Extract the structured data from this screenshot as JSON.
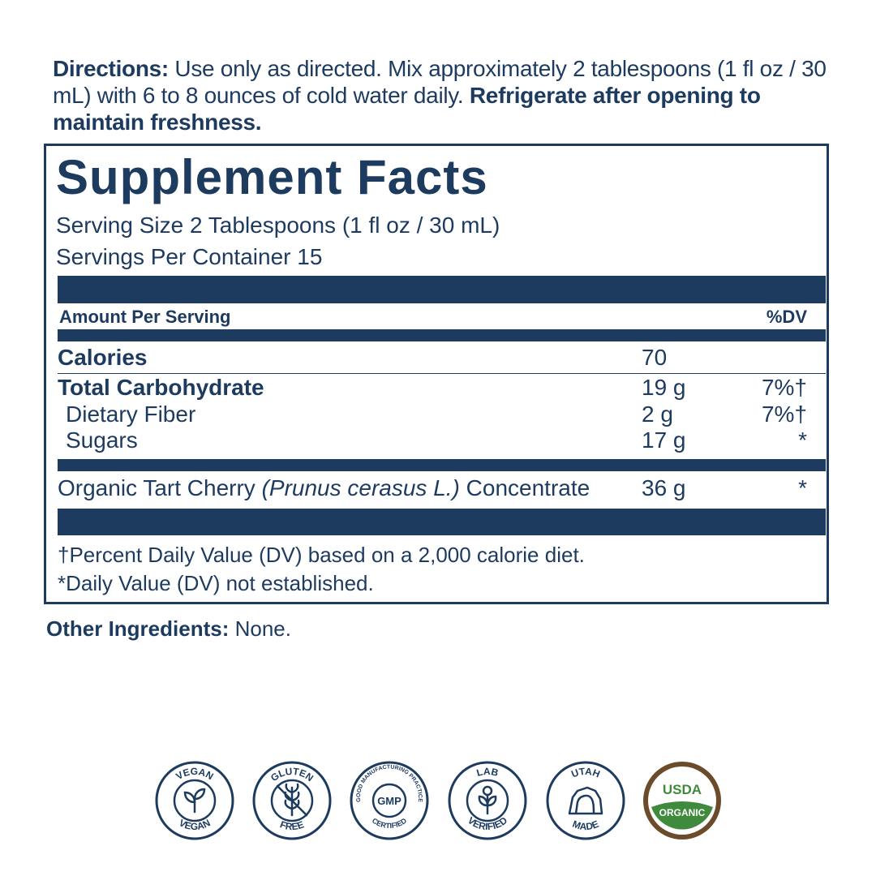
{
  "directions": {
    "label": "Directions:",
    "text": " Use only as directed. Mix approximately 2 tablespoons (1 fl oz / 30 mL) with 6 to 8 ounces of cold water daily. ",
    "emphasis": "Refrigerate after opening to maintain freshness."
  },
  "facts": {
    "title": "Supplement Facts",
    "serving_size": "Serving Size 2 Tablespoons (1 fl oz / 30 mL)",
    "servings_per_container": "Servings Per Container 15",
    "header_amount": "Amount Per Serving",
    "header_dv": "%DV",
    "rows": [
      {
        "name": "Calories",
        "amount": "70",
        "dv": ""
      },
      {
        "name": "Total Carbohydrate",
        "amount": "19 g",
        "dv": "7%†"
      },
      {
        "name": "Dietary Fiber",
        "amount": "2 g",
        "dv": "7%†"
      },
      {
        "name": "Sugars",
        "amount": "17 g",
        "dv": "*"
      }
    ],
    "ingredient": {
      "name_prefix": "Organic Tart Cherry ",
      "name_italic": "(Prunus cerasus L.)",
      "name_suffix": " Concentrate",
      "amount": "36 g",
      "dv": "*"
    },
    "footnote_1": "†Percent Daily Value (DV) based on a 2,000 calorie diet.",
    "footnote_2": "*Daily Value (DV) not established."
  },
  "other_ingredients": {
    "label": "Other Ingredients:",
    "text": " None."
  },
  "badges": [
    {
      "name": "vegan-badge",
      "top_text": "VEGAN",
      "bottom_text": "VEGAN",
      "icon": "sprout-icon"
    },
    {
      "name": "gluten-free-badge",
      "top_text": "GLUTEN",
      "bottom_text": "FREE",
      "icon": "wheat-crossed-icon"
    },
    {
      "name": "gmp-badge",
      "top_text": "GOOD MANUFACTURING PRACTICE",
      "bottom_text": "CERTIFIED",
      "center_text": "GMP"
    },
    {
      "name": "lab-verified-badge",
      "top_text": "LAB",
      "bottom_text": "VERIFIED",
      "icon": "sprout-icon"
    },
    {
      "name": "utah-made-badge",
      "top_text": "UTAH",
      "bottom_text": "MADE",
      "icon": "arch-icon"
    },
    {
      "name": "usda-organic-badge",
      "top_text": "USDA",
      "bottom_text": "ORGANIC"
    }
  ],
  "colors": {
    "navy": "#1d3a5f",
    "usda_green": "#3f8a3c",
    "usda_brown": "#6b4b2a"
  }
}
